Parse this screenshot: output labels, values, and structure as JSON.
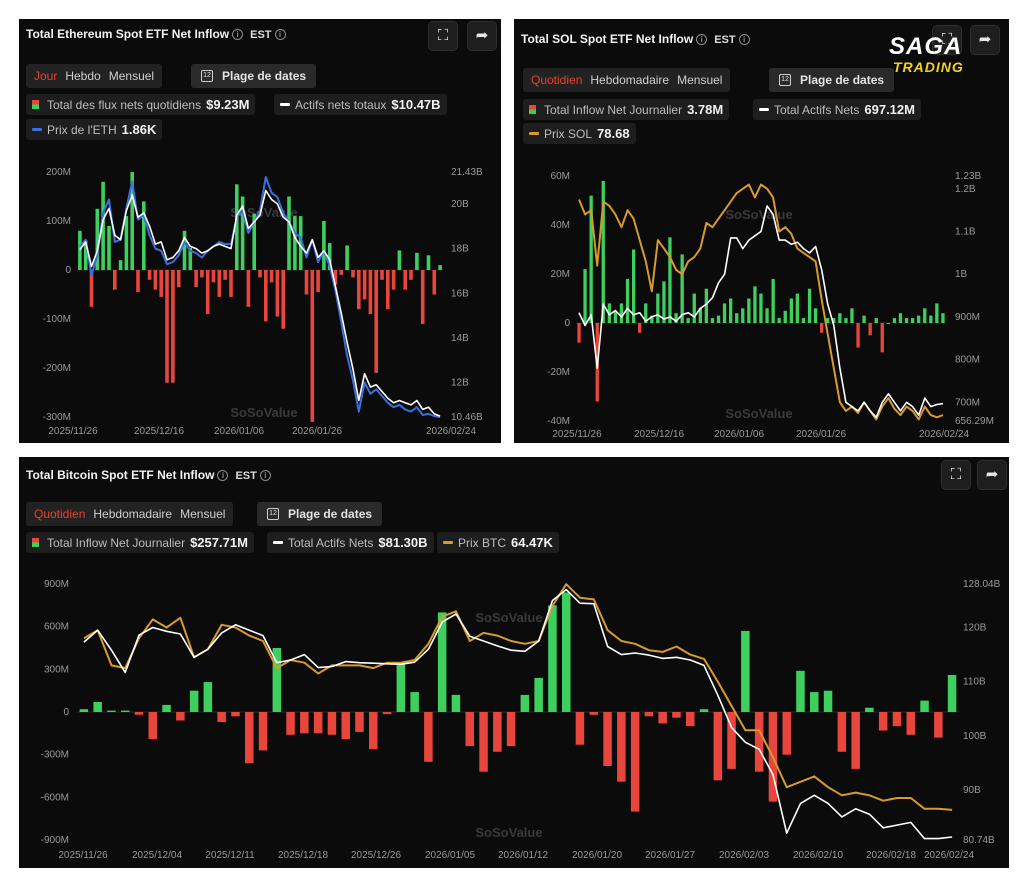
{
  "eth": {
    "title": "Total Ethereum Spot ETF Net Inflow",
    "tz": "EST",
    "tabs": [
      "Jour",
      "Hebdo",
      "Mensuel"
    ],
    "date_range": "Plage de dates",
    "legend": [
      {
        "label": "Total des flux nets quotidiens",
        "value": "$9.23M"
      },
      {
        "label": "Actifs nets totaux",
        "value": "$10.47B"
      },
      {
        "label": "Prix de l'ETH",
        "value": "1.86K"
      }
    ],
    "watermark": "SoSoValue"
  },
  "sol": {
    "title": "Total SOL Spot ETF Net Inflow",
    "tz": "EST",
    "tabs": [
      "Quotidien",
      "Hebdomadaire",
      "Mensuel"
    ],
    "date_range": "Plage de dates",
    "legend": [
      {
        "label": "Total Inflow Net Journalier",
        "value": "3.78M"
      },
      {
        "label": "Total Actifs Nets",
        "value": "697.12M"
      },
      {
        "label": "Prix SOL",
        "value": "78.68"
      }
    ],
    "watermark": "SoSoValue"
  },
  "btc": {
    "title": "Total Bitcoin Spot ETF Net Inflow",
    "tz": "EST",
    "tabs": [
      "Quotidien",
      "Hebdomadaire",
      "Mensuel"
    ],
    "date_range": "Plage de dates",
    "legend": [
      {
        "label": "Total Inflow Net Journalier",
        "value": "$257.71M"
      },
      {
        "label": "Total Actifs Nets",
        "value": "$81.30B"
      },
      {
        "label": "Prix BTC",
        "value": "64.47K"
      }
    ],
    "watermark": "SoSoValue"
  },
  "logo": {
    "line1": "SAGA",
    "line2": "TRADING"
  },
  "icons": {
    "fullscreen": "fullscreen-icon",
    "share": "share-icon",
    "info": "info-icon",
    "calendar": "calendar-icon"
  },
  "colors": {
    "positive": "#3ecf5f",
    "negative": "#e8453c",
    "white_line": "#ffffff",
    "eth_line": "#3b6fe0",
    "gold_line": "#d79a2b",
    "active_tab": "#e8412f"
  },
  "chart_data": [
    {
      "id": "eth",
      "type": "bar",
      "title": "Total Ethereum Spot ETF Net Inflow",
      "x_ticks": [
        "2025/11/26",
        "2025/12/16",
        "2026/01/06",
        "2026/01/26",
        "2026/02/24"
      ],
      "left_ticks": [
        {
          "v": 200,
          "label": "200M"
        },
        {
          "v": 100,
          "label": "100M"
        },
        {
          "v": 0,
          "label": "0"
        },
        {
          "v": -100,
          "label": "-100M"
        },
        {
          "v": -200,
          "label": "-200M"
        },
        {
          "v": -300,
          "label": "-300M"
        }
      ],
      "right_ticks": [
        {
          "v": 21.43,
          "label": "21.43B"
        },
        {
          "v": 20,
          "label": "20B"
        },
        {
          "v": 18,
          "label": "18B"
        },
        {
          "v": 16,
          "label": "16B"
        },
        {
          "v": 14,
          "label": "14B"
        },
        {
          "v": 12,
          "label": "12B"
        },
        {
          "v": 10.46,
          "label": "10.46B"
        }
      ],
      "left_range": [
        -300,
        200
      ],
      "right_range": [
        10.46,
        21.43
      ],
      "flows": [
        80,
        60,
        -75,
        125,
        180,
        90,
        -40,
        20,
        110,
        200,
        -45,
        140,
        -20,
        -40,
        -55,
        -230,
        -230,
        -35,
        80,
        45,
        -35,
        -15,
        -90,
        -25,
        -55,
        -20,
        -55,
        175,
        150,
        -75,
        115,
        -15,
        -105,
        -25,
        -95,
        -120,
        150,
        110,
        110,
        -50,
        -310,
        -45,
        100,
        55,
        -30,
        -10,
        50,
        -15,
        -80,
        -60,
        -90,
        -210,
        -20,
        -80,
        -40,
        40,
        -40,
        -20,
        35,
        -110,
        30,
        -50,
        10
      ],
      "assets": [
        17.95,
        18.3,
        17.2,
        17.9,
        19.3,
        19.8,
        18.6,
        18.4,
        19.7,
        20.4,
        19.4,
        19.6,
        19.0,
        18.2,
        18.3,
        17.5,
        17.6,
        17.9,
        18.5,
        18.1,
        18.0,
        17.8,
        17.9,
        18.1,
        18.2,
        18.1,
        18.0,
        19.5,
        19.9,
        18.9,
        19.2,
        19.5,
        20.6,
        20.2,
        20.0,
        19.4,
        19.2,
        18.5,
        18.1,
        17.8,
        18.4,
        17.6,
        17.9,
        17.5,
        16.3,
        15.1,
        13.8,
        12.6,
        11.2,
        12.4,
        11.8,
        11.9,
        11.6,
        11.3,
        11.1,
        11.2,
        11.1,
        11.0,
        11.2,
        10.8,
        10.9,
        10.6,
        10.5
      ],
      "eth_price": [
        18.1,
        18.4,
        16.8,
        17.7,
        19.6,
        20.2,
        18.3,
        18.4,
        19.8,
        21.0,
        19.3,
        19.5,
        18.6,
        18.0,
        17.9,
        17.3,
        17.4,
        17.7,
        18.3,
        17.9,
        17.8,
        17.6,
        17.9,
        18.1,
        18.3,
        18.2,
        18.2,
        19.4,
        19.7,
        18.7,
        19.2,
        19.7,
        21.2,
        20.5,
        20.3,
        19.6,
        19.2,
        18.7,
        18.5,
        17.6,
        18.4,
        17.4,
        17.9,
        17.2,
        16.1,
        14.7,
        13.2,
        12.1,
        10.7,
        12.0,
        11.5,
        11.7,
        11.4,
        11.1,
        10.9,
        11.0,
        10.8,
        10.7,
        10.9,
        10.55,
        10.6,
        10.5,
        10.46
      ]
    },
    {
      "id": "sol",
      "type": "bar",
      "title": "Total SOL Spot ETF Net Inflow",
      "x_ticks": [
        "2025/11/26",
        "2025/12/16",
        "2026/01/06",
        "2026/01/26",
        "2026/02/24"
      ],
      "left_ticks": [
        {
          "v": 60,
          "label": "60M"
        },
        {
          "v": 40,
          "label": "40M"
        },
        {
          "v": 20,
          "label": "20M"
        },
        {
          "v": 0,
          "label": "0"
        },
        {
          "v": -20,
          "label": "-20M"
        },
        {
          "v": -40,
          "label": "-40M"
        }
      ],
      "right_ticks": [
        {
          "v": 1230,
          "label": "1.23B"
        },
        {
          "v": 1200,
          "label": "1.2B"
        },
        {
          "v": 1100,
          "label": "1.1B"
        },
        {
          "v": 1000,
          "label": "1B"
        },
        {
          "v": 900,
          "label": "900M"
        },
        {
          "v": 800,
          "label": "800M"
        },
        {
          "v": 700,
          "label": "700M"
        },
        {
          "v": 656.29,
          "label": "656.29M"
        }
      ],
      "left_range": [
        -40,
        60
      ],
      "right_range": [
        656.29,
        1230
      ],
      "flows": [
        -8,
        22,
        52,
        -32,
        58,
        8,
        5,
        8,
        18,
        30,
        -4,
        8,
        3,
        12,
        17,
        35,
        4,
        28,
        2,
        12,
        6,
        14,
        2,
        3,
        8,
        10,
        4,
        6,
        10,
        15,
        12,
        6,
        18,
        2,
        5,
        10,
        12,
        2,
        14,
        6,
        -4,
        2,
        2,
        4,
        2,
        6,
        -10,
        3,
        -5,
        2,
        -12,
        0,
        2,
        4,
        2,
        2,
        3,
        6,
        3,
        8,
        4
      ],
      "assets": [
        910,
        880,
        905,
        780,
        930,
        905,
        915,
        900,
        920,
        905,
        910,
        890,
        900,
        905,
        895,
        900,
        890,
        905,
        910,
        900,
        920,
        930,
        945,
        980,
        1000,
        1085,
        1085,
        1060,
        1080,
        1090,
        1100,
        1160,
        1140,
        1080,
        1080,
        1070,
        1075,
        1060,
        1050,
        1065,
        1010,
        930,
        880,
        780,
        700,
        690,
        680,
        700,
        680,
        665,
        700,
        720,
        700,
        680,
        700,
        690,
        670,
        710,
        690,
        695,
        697
      ],
      "sol_price": [
        1175,
        1140,
        1150,
        1020,
        1170,
        1160,
        1140,
        1110,
        1150,
        1130,
        1080,
        1030,
        960,
        1080,
        1060,
        1040,
        1010,
        1000,
        1030,
        1040,
        1060,
        1120,
        1110,
        1130,
        1150,
        1170,
        1190,
        1200,
        1210,
        1180,
        1210,
        1200,
        1180,
        1100,
        1110,
        1095,
        1060,
        1050,
        1040,
        1030,
        940,
        860,
        780,
        700,
        680,
        690,
        675,
        700,
        680,
        660,
        690,
        710,
        685,
        670,
        690,
        680,
        660,
        690,
        670,
        665,
        670
      ]
    },
    {
      "id": "btc",
      "type": "bar",
      "title": "Total Bitcoin Spot ETF Net Inflow",
      "x_ticks": [
        "2025/11/26",
        "2025/12/04",
        "2025/12/11",
        "2025/12/18",
        "2025/12/26",
        "2026/01/05",
        "2026/01/12",
        "2026/01/20",
        "2026/01/27",
        "2026/02/03",
        "2026/02/10",
        "2026/02/18",
        "2026/02/24"
      ],
      "left_ticks": [
        {
          "v": 900,
          "label": "900M"
        },
        {
          "v": 600,
          "label": "600M"
        },
        {
          "v": 300,
          "label": "300M"
        },
        {
          "v": 0,
          "label": "0"
        },
        {
          "v": -300,
          "label": "-300M"
        },
        {
          "v": -600,
          "label": "-600M"
        },
        {
          "v": -900,
          "label": "-900M"
        }
      ],
      "right_ticks": [
        {
          "v": 128.04,
          "label": "128.04B"
        },
        {
          "v": 120,
          "label": "120B"
        },
        {
          "v": 110,
          "label": "110B"
        },
        {
          "v": 100,
          "label": "100B"
        },
        {
          "v": 90,
          "label": "90B"
        },
        {
          "v": 80.74,
          "label": "80.74B"
        }
      ],
      "left_range": [
        -900,
        900
      ],
      "right_range": [
        80.74,
        128.04
      ],
      "flows": [
        20,
        70,
        10,
        10,
        -20,
        -190,
        50,
        -60,
        150,
        210,
        -70,
        -30,
        -360,
        -270,
        450,
        -160,
        -150,
        -150,
        -160,
        -190,
        -140,
        -260,
        -15,
        350,
        140,
        -350,
        700,
        120,
        -240,
        -420,
        -280,
        -240,
        120,
        240,
        750,
        840,
        -230,
        -20,
        -380,
        -490,
        -700,
        -30,
        -80,
        -40,
        -100,
        20,
        -480,
        -400,
        570,
        -420,
        -630,
        -300,
        290,
        140,
        150,
        -280,
        -400,
        30,
        -130,
        -100,
        -160,
        80,
        -180,
        260
      ],
      "assets": [
        117.3,
        119.5,
        115.8,
        111.7,
        118.6,
        120.0,
        119.3,
        118.8,
        114.5,
        116.0,
        119.0,
        120.5,
        119.5,
        118.5,
        113.5,
        114.0,
        115.0,
        112.6,
        112.8,
        113.7,
        113.5,
        113.4,
        113.3,
        113.2,
        113.6,
        116.0,
        121.0,
        122.5,
        118.4,
        117.5,
        116.6,
        115.8,
        115.6,
        117.5,
        125.0,
        127.0,
        124.5,
        124.4,
        116.5,
        115.0,
        115.3,
        114.9,
        114.3,
        114.5,
        114.0,
        113.0,
        107.5,
        101.5,
        98.8,
        97.5,
        92.8,
        82.0,
        87.5,
        89.0,
        87.5,
        85.0,
        86.5,
        85.5,
        83.0,
        83.5,
        84.0,
        81.0,
        81.0,
        81.3
      ],
      "btc_price": [
        118.0,
        119.5,
        113.0,
        112.5,
        118.0,
        121.5,
        120.0,
        121.8,
        114.5,
        116.0,
        120.5,
        120.0,
        118.5,
        117.5,
        112.5,
        114.0,
        113.5,
        111.5,
        113.0,
        113.0,
        113.0,
        112.5,
        113.5,
        113.5,
        114.0,
        117.0,
        122.0,
        123.0,
        117.5,
        119.0,
        118.5,
        117.5,
        117.0,
        117.5,
        124.0,
        128.0,
        125.5,
        125.2,
        119.5,
        117.5,
        117.0,
        115.8,
        115.5,
        116.5,
        115.0,
        114.2,
        110.0,
        105.5,
        101.0,
        101.0,
        96.0,
        90.5,
        91.5,
        92.5,
        90.5,
        89.0,
        89.5,
        89.0,
        88.0,
        88.5,
        88.5,
        86.5,
        86.5,
        86.3
      ]
    }
  ]
}
